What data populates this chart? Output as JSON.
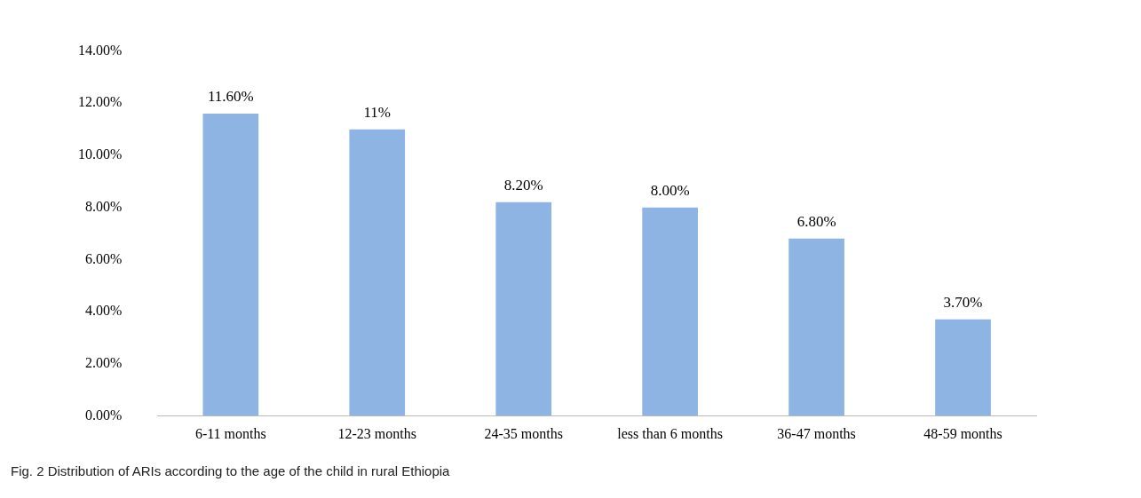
{
  "chart_data": {
    "type": "bar",
    "categories": [
      "6-11 months",
      "12-23 months",
      "24-35 months",
      "less than 6 months",
      "36-47 months",
      "48-59 months"
    ],
    "values": [
      11.6,
      11,
      8.2,
      8.0,
      6.8,
      3.7
    ],
    "value_labels": [
      "11.60%",
      "11%",
      "8.20%",
      "8.00%",
      "6.80%",
      "3.70%"
    ],
    "color": "#8eb4e3",
    "ylim": [
      0,
      14
    ],
    "yticks": [
      {
        "value": 0,
        "label": "0.00%"
      },
      {
        "value": 2,
        "label": "2.00%"
      },
      {
        "value": 4,
        "label": "4.00%"
      },
      {
        "value": 6,
        "label": "6.00%"
      },
      {
        "value": 8,
        "label": "8.00%"
      },
      {
        "value": 10,
        "label": "10.00%"
      },
      {
        "value": 12,
        "label": "12.00%"
      },
      {
        "value": 14,
        "label": "14.00%"
      }
    ],
    "grid": false,
    "legend": false,
    "annotations": [
      "Fig. 2 Distribution of ARIs according to the age of the child in rural Ethiopia"
    ]
  }
}
